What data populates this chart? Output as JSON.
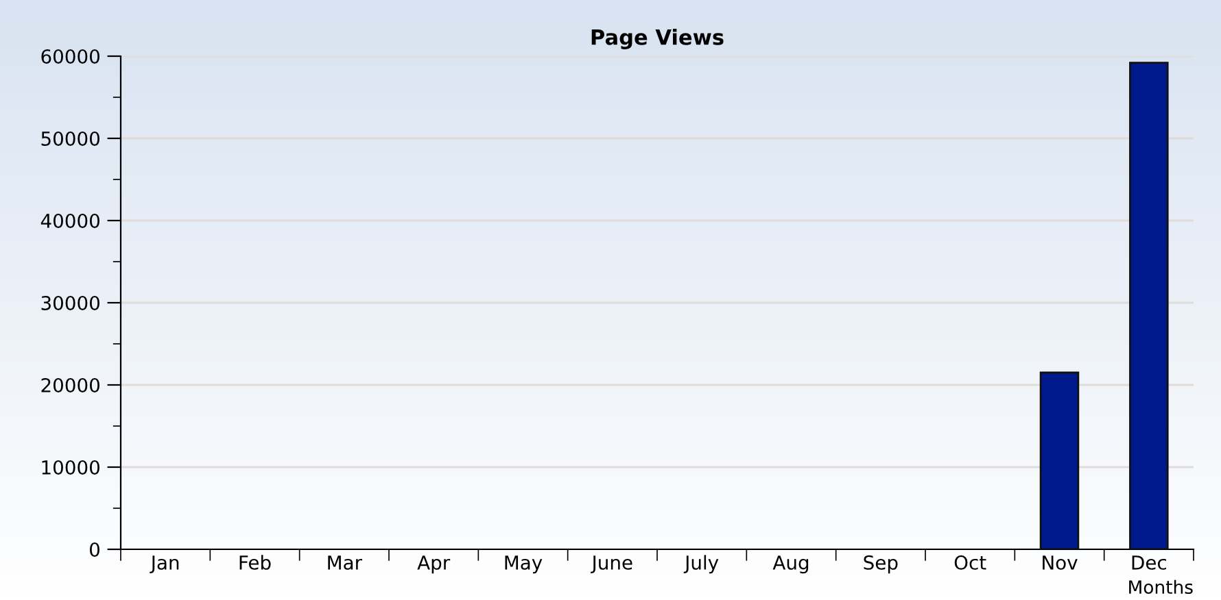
{
  "chart_data": {
    "type": "bar",
    "title": "Page Views",
    "xlabel": "Months",
    "categories": [
      "Jan",
      "Feb",
      "Mar",
      "Apr",
      "May",
      "June",
      "July",
      "Aug",
      "Sep",
      "Oct",
      "Nov",
      "Dec"
    ],
    "values": [
      0,
      0,
      0,
      0,
      0,
      0,
      0,
      0,
      0,
      0,
      21500,
      59200
    ],
    "color": "#001a8c",
    "ylim": [
      0,
      60000
    ],
    "yticks": [
      0,
      {
        "value": 5000,
        "label": null
      },
      10000,
      {
        "value": 15000,
        "label": null
      },
      20000,
      {
        "value": 25000,
        "label": null
      },
      30000,
      {
        "value": 35000,
        "label": null
      },
      40000,
      {
        "value": 45000,
        "label": null
      },
      50000,
      {
        "value": 55000,
        "label": null
      },
      60000
    ],
    "grid": "y",
    "legend": false
  }
}
